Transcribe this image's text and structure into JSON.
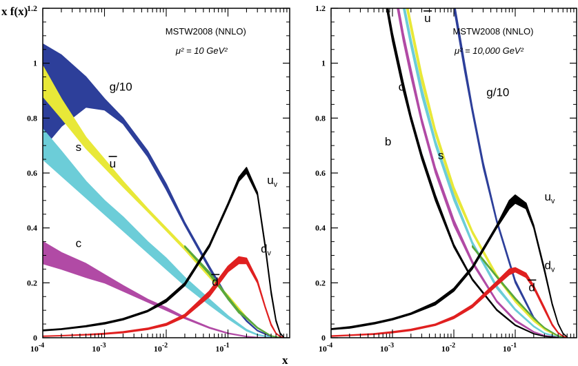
{
  "colors": {
    "gluon": "#2d3f9a",
    "light_sea": "#e8e838",
    "strange": "#6ccdd8",
    "charm": "#b14aa5",
    "bottom": "#000000",
    "valence_u": "#000000",
    "valence_d": "#e02020",
    "dbar": "#5aa83c"
  },
  "axis": {
    "ylabel": "x f(x)",
    "xlabel": "x"
  },
  "chart_data": [
    {
      "type": "line",
      "title": "MSTW2008 (NNLO)",
      "subtitle": "μ² = 10 GeV²",
      "x_scale": "log",
      "xlim": [
        0.0001,
        1
      ],
      "ylim": [
        0,
        1.2
      ],
      "xticks": [
        0.0001,
        0.001,
        0.01,
        0.1
      ],
      "xtick_labels": [
        {
          "base": "10",
          "exp": "-4"
        },
        {
          "base": "10",
          "exp": "-3"
        },
        {
          "base": "10",
          "exp": "-2"
        },
        {
          "base": "10",
          "exp": "-1"
        }
      ],
      "yticks": [
        0,
        0.2,
        0.4,
        0.6,
        0.8,
        1,
        1.2
      ],
      "ytick_labels": [
        "0",
        "0.2",
        "0.4",
        "0.6",
        "0.8",
        "1",
        "1.2"
      ],
      "series": [
        {
          "key": "g",
          "name": "g/10",
          "color_key": "gluon",
          "label_pos": {
            "x": 0.0012,
            "y": 0.9
          },
          "x": [
            0.0001,
            0.0002,
            0.0005,
            0.001,
            0.002,
            0.005,
            0.01,
            0.02,
            0.05,
            0.1,
            0.2,
            0.3,
            0.5,
            0.7
          ],
          "lo": [
            0.69,
            0.77,
            0.84,
            0.83,
            0.78,
            0.66,
            0.54,
            0.41,
            0.25,
            0.14,
            0.06,
            0.025,
            0.004,
            0.0005
          ],
          "hi": [
            1.07,
            1.03,
            0.95,
            0.87,
            0.8,
            0.68,
            0.56,
            0.42,
            0.26,
            0.145,
            0.063,
            0.027,
            0.005,
            0.0006
          ]
        },
        {
          "key": "ubar",
          "name": "u",
          "bar": true,
          "color_key": "light_sea",
          "label_pos": {
            "x": 0.0012,
            "y": 0.62
          },
          "x": [
            0.0001,
            0.0002,
            0.0005,
            0.001,
            0.002,
            0.005,
            0.01,
            0.02,
            0.05,
            0.1,
            0.2,
            0.3,
            0.5,
            0.7
          ],
          "lo": [
            0.88,
            0.8,
            0.69,
            0.62,
            0.55,
            0.46,
            0.39,
            0.32,
            0.22,
            0.15,
            0.07,
            0.035,
            0.006,
            0.001
          ],
          "hi": [
            0.99,
            0.87,
            0.73,
            0.65,
            0.57,
            0.47,
            0.4,
            0.33,
            0.225,
            0.155,
            0.075,
            0.037,
            0.007,
            0.001
          ]
        },
        {
          "key": "s",
          "name": "s",
          "color_key": "strange",
          "label_pos": {
            "x": 0.00034,
            "y": 0.68
          },
          "x": [
            0.0001,
            0.0002,
            0.0005,
            0.001,
            0.002,
            0.005,
            0.01,
            0.02,
            0.05,
            0.1,
            0.2,
            0.3,
            0.5,
            0.7
          ],
          "lo": [
            0.65,
            0.59,
            0.51,
            0.45,
            0.39,
            0.31,
            0.25,
            0.19,
            0.12,
            0.07,
            0.025,
            0.01,
            0.001,
            0.0001
          ],
          "hi": [
            0.76,
            0.68,
            0.57,
            0.5,
            0.44,
            0.35,
            0.29,
            0.22,
            0.14,
            0.08,
            0.03,
            0.012,
            0.002,
            0.0002
          ]
        },
        {
          "key": "c",
          "name": "c",
          "color_key": "charm",
          "label_pos": {
            "x": 0.00034,
            "y": 0.33
          },
          "x": [
            0.0001,
            0.0002,
            0.0005,
            0.001,
            0.002,
            0.005,
            0.01,
            0.02,
            0.05,
            0.1,
            0.2,
            0.3,
            0.5,
            0.7
          ],
          "lo": [
            0.27,
            0.25,
            0.22,
            0.2,
            0.17,
            0.13,
            0.1,
            0.07,
            0.035,
            0.015,
            0.004,
            0.001,
            0.0001,
            0
          ],
          "hi": [
            0.35,
            0.31,
            0.27,
            0.23,
            0.19,
            0.14,
            0.11,
            0.075,
            0.038,
            0.017,
            0.005,
            0.0015,
            0.0001,
            0
          ]
        },
        {
          "key": "dbar",
          "name": "d",
          "bar": true,
          "color_key": "dbar",
          "label_pos": {
            "x": 0.055,
            "y": 0.19
          },
          "x": [
            0.02,
            0.05,
            0.08,
            0.1,
            0.15,
            0.2,
            0.3,
            0.5,
            0.7
          ],
          "lo": [
            0.33,
            0.23,
            0.17,
            0.14,
            0.09,
            0.07,
            0.035,
            0.006,
            0.001
          ],
          "hi": [
            0.335,
            0.24,
            0.18,
            0.15,
            0.1,
            0.075,
            0.038,
            0.007,
            0.001
          ]
        },
        {
          "key": "uv",
          "name": "u",
          "sub": "v",
          "color_key": "valence_u",
          "label_pos": {
            "x": 0.43,
            "y": 0.56
          },
          "x": [
            0.0001,
            0.0002,
            0.0005,
            0.001,
            0.002,
            0.005,
            0.01,
            0.02,
            0.05,
            0.1,
            0.15,
            0.2,
            0.3,
            0.4,
            0.5,
            0.6,
            0.7,
            0.8
          ],
          "lo": [
            0.025,
            0.03,
            0.04,
            0.05,
            0.065,
            0.095,
            0.13,
            0.19,
            0.33,
            0.48,
            0.57,
            0.6,
            0.52,
            0.33,
            0.16,
            0.06,
            0.015,
            0.002
          ],
          "hi": [
            0.028,
            0.033,
            0.044,
            0.055,
            0.07,
            0.1,
            0.14,
            0.2,
            0.34,
            0.49,
            0.585,
            0.62,
            0.53,
            0.34,
            0.17,
            0.065,
            0.017,
            0.002
          ]
        },
        {
          "key": "dv",
          "name": "d",
          "sub": "v",
          "color_key": "valence_d",
          "label_pos": {
            "x": 0.34,
            "y": 0.31
          },
          "x": [
            0.0001,
            0.0002,
            0.0005,
            0.001,
            0.002,
            0.005,
            0.01,
            0.02,
            0.05,
            0.1,
            0.15,
            0.2,
            0.3,
            0.4,
            0.5,
            0.6,
            0.7,
            0.8
          ],
          "lo": [
            0.005,
            0.007,
            0.01,
            0.013,
            0.018,
            0.03,
            0.045,
            0.075,
            0.15,
            0.24,
            0.27,
            0.27,
            0.2,
            0.11,
            0.045,
            0.015,
            0.004,
            0.0005
          ],
          "hi": [
            0.006,
            0.008,
            0.012,
            0.016,
            0.022,
            0.035,
            0.052,
            0.085,
            0.17,
            0.26,
            0.295,
            0.29,
            0.21,
            0.115,
            0.05,
            0.017,
            0.005,
            0.0005
          ]
        }
      ]
    },
    {
      "type": "line",
      "title": "MSTW2008 (NNLO)",
      "subtitle": "μ² = 10,000 GeV²",
      "x_scale": "log",
      "xlim": [
        0.0001,
        1
      ],
      "ylim": [
        0,
        1.2
      ],
      "xticks": [
        0.0001,
        0.001,
        0.01,
        0.1
      ],
      "xtick_labels": [
        {
          "base": "10",
          "exp": "-4"
        },
        {
          "base": "10",
          "exp": "-3"
        },
        {
          "base": "10",
          "exp": "-2"
        },
        {
          "base": "10",
          "exp": "-1"
        }
      ],
      "yticks": [
        0,
        0.2,
        0.4,
        0.6,
        0.8,
        1,
        1.2
      ],
      "ytick_labels": [
        "0",
        "0.2",
        "0.4",
        "0.6",
        "0.8",
        "1",
        "1.2"
      ],
      "series": [
        {
          "key": "g",
          "name": "g/10",
          "color_key": "gluon",
          "label_pos": {
            "x": 0.034,
            "y": 0.88
          },
          "x": [
            0.01,
            0.015,
            0.02,
            0.03,
            0.05,
            0.1,
            0.2,
            0.3,
            0.5,
            0.7
          ],
          "lo": [
            1.2,
            0.97,
            0.82,
            0.62,
            0.42,
            0.2,
            0.07,
            0.03,
            0.005,
            0.0005
          ],
          "hi": [
            1.23,
            1.0,
            0.84,
            0.64,
            0.43,
            0.21,
            0.075,
            0.032,
            0.006,
            0.0006
          ]
        },
        {
          "key": "ubar",
          "name": "u",
          "bar": true,
          "color_key": "light_sea",
          "label_pos": {
            "x": 0.0033,
            "y": 1.15
          },
          "x": [
            0.0017,
            0.002,
            0.003,
            0.005,
            0.01,
            0.02,
            0.05,
            0.1,
            0.2,
            0.3,
            0.5,
            0.7
          ],
          "lo": [
            1.2,
            1.12,
            0.93,
            0.74,
            0.53,
            0.38,
            0.22,
            0.13,
            0.06,
            0.03,
            0.005,
            0.001
          ],
          "hi": [
            1.23,
            1.15,
            0.96,
            0.76,
            0.55,
            0.39,
            0.23,
            0.135,
            0.065,
            0.032,
            0.006,
            0.001
          ]
        },
        {
          "key": "s",
          "name": "s",
          "color_key": "strange",
          "label_pos": {
            "x": 0.0055,
            "y": 0.65
          },
          "x": [
            0.0015,
            0.002,
            0.003,
            0.005,
            0.01,
            0.02,
            0.05,
            0.1,
            0.2,
            0.3,
            0.5,
            0.7
          ],
          "lo": [
            1.2,
            1.06,
            0.88,
            0.7,
            0.5,
            0.34,
            0.18,
            0.1,
            0.04,
            0.015,
            0.002,
            0.0002
          ],
          "hi": [
            1.23,
            1.09,
            0.91,
            0.72,
            0.52,
            0.35,
            0.19,
            0.105,
            0.043,
            0.017,
            0.003,
            0.0003
          ]
        },
        {
          "key": "c",
          "name": "c",
          "color_key": "charm",
          "label_pos": {
            "x": 0.00125,
            "y": 0.9
          },
          "x": [
            0.0012,
            0.0015,
            0.002,
            0.003,
            0.005,
            0.01,
            0.02,
            0.05,
            0.1,
            0.2,
            0.3,
            0.5
          ],
          "lo": [
            1.2,
            1.08,
            0.95,
            0.78,
            0.6,
            0.41,
            0.27,
            0.13,
            0.06,
            0.02,
            0.007,
            0.001
          ],
          "hi": [
            1.23,
            1.11,
            0.98,
            0.8,
            0.62,
            0.43,
            0.28,
            0.135,
            0.065,
            0.022,
            0.008,
            0.001
          ]
        },
        {
          "key": "b",
          "name": "b",
          "color_key": "bottom",
          "label_pos": {
            "x": 0.00075,
            "y": 0.7
          },
          "x": [
            0.0008,
            0.001,
            0.0015,
            0.002,
            0.003,
            0.005,
            0.01,
            0.02,
            0.05,
            0.1,
            0.2,
            0.3,
            0.5
          ],
          "lo": [
            1.2,
            1.08,
            0.9,
            0.79,
            0.65,
            0.5,
            0.33,
            0.21,
            0.1,
            0.045,
            0.014,
            0.005,
            0.0005
          ],
          "hi": [
            1.23,
            1.11,
            0.93,
            0.81,
            0.67,
            0.52,
            0.34,
            0.215,
            0.103,
            0.047,
            0.015,
            0.005,
            0.0005
          ]
        },
        {
          "key": "dbar",
          "name": "d",
          "bar": true,
          "color_key": "dbar",
          "label_pos": {
            "x": 0.165,
            "y": 0.17
          },
          "x": [
            0.02,
            0.05,
            0.1,
            0.2,
            0.3,
            0.5,
            0.7
          ],
          "lo": [
            0.33,
            0.22,
            0.14,
            0.07,
            0.035,
            0.006,
            0.001
          ],
          "hi": [
            0.335,
            0.225,
            0.145,
            0.072,
            0.037,
            0.007,
            0.001
          ]
        },
        {
          "key": "uv",
          "name": "u",
          "sub": "v",
          "color_key": "valence_u",
          "label_pos": {
            "x": 0.3,
            "y": 0.5
          },
          "x": [
            0.0001,
            0.0002,
            0.0005,
            0.001,
            0.002,
            0.005,
            0.01,
            0.02,
            0.05,
            0.08,
            0.1,
            0.15,
            0.2,
            0.3,
            0.4,
            0.5,
            0.6,
            0.7
          ],
          "lo": [
            0.03,
            0.035,
            0.05,
            0.065,
            0.085,
            0.12,
            0.17,
            0.25,
            0.4,
            0.47,
            0.49,
            0.47,
            0.4,
            0.24,
            0.12,
            0.05,
            0.015,
            0.003
          ],
          "hi": [
            0.033,
            0.04,
            0.055,
            0.07,
            0.09,
            0.13,
            0.18,
            0.26,
            0.41,
            0.5,
            0.52,
            0.49,
            0.41,
            0.25,
            0.125,
            0.052,
            0.016,
            0.003
          ]
        },
        {
          "key": "dv",
          "name": "d",
          "sub": "v",
          "color_key": "valence_d",
          "label_pos": {
            "x": 0.3,
            "y": 0.25
          },
          "x": [
            0.0001,
            0.0002,
            0.0005,
            0.001,
            0.002,
            0.005,
            0.01,
            0.02,
            0.05,
            0.08,
            0.1,
            0.15,
            0.2,
            0.3,
            0.4,
            0.5,
            0.6,
            0.7
          ],
          "lo": [
            0.005,
            0.008,
            0.012,
            0.018,
            0.026,
            0.045,
            0.07,
            0.11,
            0.19,
            0.23,
            0.24,
            0.22,
            0.18,
            0.1,
            0.045,
            0.017,
            0.005,
            0.001
          ],
          "hi": [
            0.007,
            0.01,
            0.015,
            0.022,
            0.031,
            0.05,
            0.078,
            0.12,
            0.205,
            0.25,
            0.255,
            0.235,
            0.19,
            0.11,
            0.05,
            0.019,
            0.006,
            0.001
          ]
        }
      ]
    }
  ]
}
